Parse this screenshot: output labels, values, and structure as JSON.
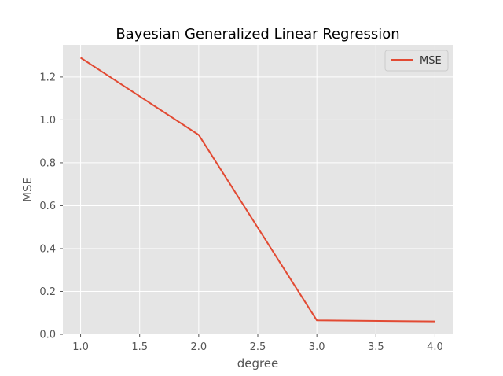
{
  "chart_data": {
    "type": "line",
    "title": "Bayesian Generalized Linear Regression",
    "xlabel": "degree",
    "ylabel": "MSE",
    "xlim": [
      0.85,
      4.15
    ],
    "ylim": [
      0.0,
      1.35
    ],
    "x_ticks": [
      "1.0",
      "1.5",
      "2.0",
      "2.5",
      "3.0",
      "3.5",
      "4.0"
    ],
    "y_ticks": [
      "0.0",
      "0.2",
      "0.4",
      "0.6",
      "0.8",
      "1.0",
      "1.2"
    ],
    "grid": true,
    "legend_position": "top-right",
    "series": [
      {
        "name": "MSE",
        "color": "#e24a33",
        "x": [
          1.0,
          2.0,
          3.0,
          4.0
        ],
        "y": [
          1.29,
          0.93,
          0.065,
          0.06
        ]
      }
    ],
    "colors": {
      "plot_background": "#e5e5e5",
      "grid": "#ffffff",
      "tick_text": "#555555"
    }
  }
}
